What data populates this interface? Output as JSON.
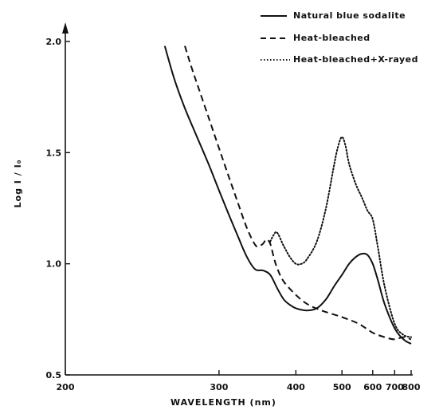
{
  "chart_data": {
    "type": "line",
    "title": "",
    "xlabel": "WAVELENGTH  (nm)",
    "ylabel": "Log I / I₀",
    "x_scale": "reciprocal",
    "xlim": [
      200,
      800
    ],
    "ylim": [
      0.5,
      2.0
    ],
    "x_ticks": [
      200,
      300,
      400,
      500,
      600,
      700,
      800
    ],
    "x_tick_labels": [
      "200",
      "300",
      "400",
      "500",
      "600",
      "700",
      "800"
    ],
    "y_ticks": [
      0.5,
      1.0,
      1.5,
      2.0
    ],
    "y_tick_labels": [
      "0.5",
      "1.0",
      "1.5",
      "2.0"
    ],
    "grid": false,
    "legend": {
      "position": "top-right"
    },
    "series": [
      {
        "name": "Natural blue sodalite",
        "style": "solid",
        "x": [
          255,
          262,
          270,
          280,
          290,
          300,
          310,
          320,
          330,
          340,
          350,
          360,
          370,
          380,
          390,
          400,
          420,
          440,
          460,
          480,
          500,
          520,
          540,
          560,
          580,
          600,
          620,
          650,
          700,
          750,
          800
        ],
        "y": [
          1.98,
          1.83,
          1.7,
          1.57,
          1.45,
          1.33,
          1.22,
          1.12,
          1.03,
          0.975,
          0.97,
          0.95,
          0.89,
          0.84,
          0.815,
          0.8,
          0.79,
          0.8,
          0.84,
          0.9,
          0.95,
          1.0,
          1.03,
          1.045,
          1.04,
          1.0,
          0.93,
          0.82,
          0.71,
          0.66,
          0.64
        ]
      },
      {
        "name": "Heat-bleached",
        "style": "dashed",
        "x": [
          270,
          275,
          280,
          290,
          300,
          310,
          320,
          330,
          340,
          345,
          350,
          355,
          360,
          365,
          370,
          380,
          400,
          420,
          450,
          500,
          550,
          600,
          650,
          700,
          750,
          800
        ],
        "y": [
          1.98,
          1.89,
          1.81,
          1.66,
          1.52,
          1.39,
          1.27,
          1.16,
          1.085,
          1.08,
          1.09,
          1.11,
          1.09,
          1.03,
          0.98,
          0.92,
          0.86,
          0.82,
          0.79,
          0.76,
          0.73,
          0.69,
          0.67,
          0.66,
          0.67,
          0.66
        ]
      },
      {
        "name": "Heat-bleached+X-rayed",
        "style": "dotted",
        "x": [
          360,
          365,
          370,
          380,
          390,
          400,
          410,
          420,
          440,
          460,
          480,
          490,
          500,
          510,
          520,
          540,
          560,
          580,
          600,
          620,
          650,
          700,
          750,
          800
        ],
        "y": [
          1.1,
          1.13,
          1.14,
          1.08,
          1.03,
          1.0,
          1.0,
          1.02,
          1.1,
          1.25,
          1.45,
          1.53,
          1.57,
          1.53,
          1.45,
          1.36,
          1.3,
          1.24,
          1.2,
          1.08,
          0.9,
          0.73,
          0.68,
          0.67
        ]
      }
    ]
  }
}
